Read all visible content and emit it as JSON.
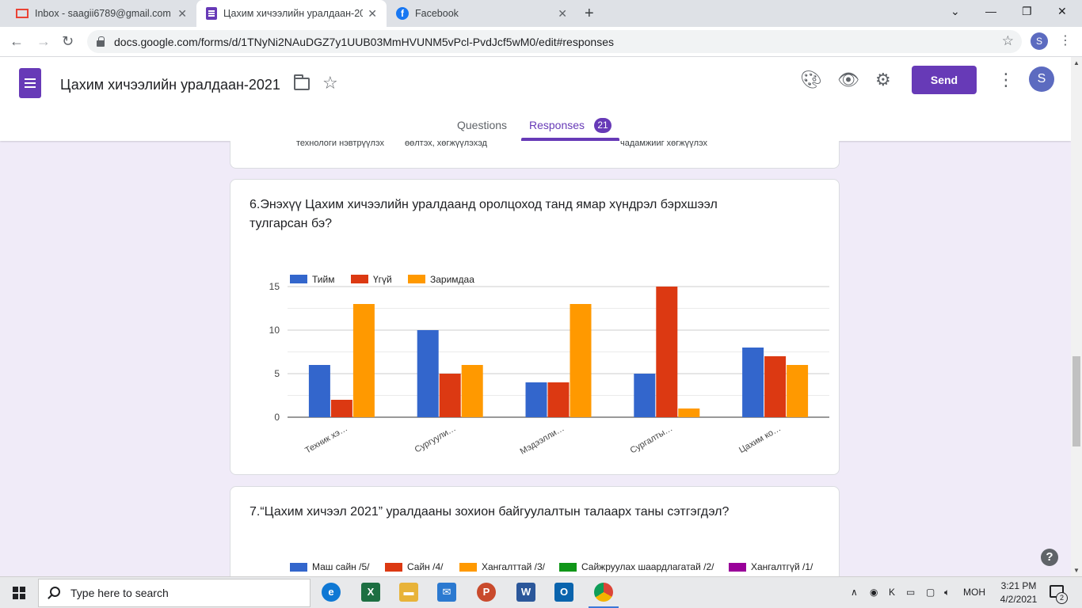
{
  "browser": {
    "tabs": [
      {
        "title": "Inbox - saagii6789@gmail.com -",
        "icon": "gmail-icon"
      },
      {
        "title": "Цахим хичээлийн уралдаан-202",
        "icon": "forms-icon"
      },
      {
        "title": "Facebook",
        "icon": "facebook-icon"
      }
    ],
    "url": "docs.google.com/forms/d/1TNyNi2NAuDGZ7y1UUB03MmHVUNM5vPcl-PvdJcf5wM0/edit#responses",
    "profile_initial": "S"
  },
  "form": {
    "title": "Цахим хичээлийн уралдаан-2021",
    "send_label": "Send",
    "avatar_initial": "S",
    "tabs": {
      "questions": "Questions",
      "responses": "Responses",
      "responses_count": "21"
    },
    "accent": "#673ab7"
  },
  "prev_card": {
    "cut_labels": [
      "технологи нэвтрүүлэх",
      "өөлтэх, хөгжүүлэхэд",
      "чадамжийг хөгжүүлэх"
    ]
  },
  "q6": {
    "title": "6.Энэхүү Цахим хичээлийн уралдаанд оролцоход танд ямар хүндрэл бэрхшээл тулгарсан бэ?",
    "chart_data": {
      "type": "bar",
      "categories": [
        "Техник хэ…",
        "Сургуули…",
        "Мэдээлли…",
        "Сургалты…",
        "Цахим ко…"
      ],
      "series": [
        {
          "name": "Тийм",
          "color": "#3366cc",
          "values": [
            6,
            10,
            4,
            5,
            8
          ]
        },
        {
          "name": "Үгүй",
          "color": "#dc3912",
          "values": [
            2,
            5,
            4,
            15,
            7
          ]
        },
        {
          "name": "Заримдаа",
          "color": "#ff9900",
          "values": [
            13,
            6,
            13,
            1,
            6
          ]
        }
      ],
      "yticks": [
        "0",
        "5",
        "10",
        "15"
      ],
      "ylim": [
        0,
        15
      ],
      "legend": "top-left",
      "grid": true
    }
  },
  "q7": {
    "title": "7.“Цахим хичээл 2021” уралдааны зохион байгуулалтын талаарх таны сэтгэгдэл?",
    "legend": [
      {
        "name": "Маш сайн /5/",
        "color": "#3366cc"
      },
      {
        "name": "Сайн /4/",
        "color": "#dc3912"
      },
      {
        "name": "Хангалттай /3/",
        "color": "#ff9900"
      },
      {
        "name": "Сайжруулах шаардлагатай /2/",
        "color": "#109618"
      },
      {
        "name": "Хангалтгүй /1/",
        "color": "#990099"
      }
    ]
  },
  "taskbar": {
    "search_placeholder": "Type here to search",
    "language": "МОН",
    "time": "3:21 PM",
    "date": "4/2/2021",
    "notification_count": "2"
  }
}
